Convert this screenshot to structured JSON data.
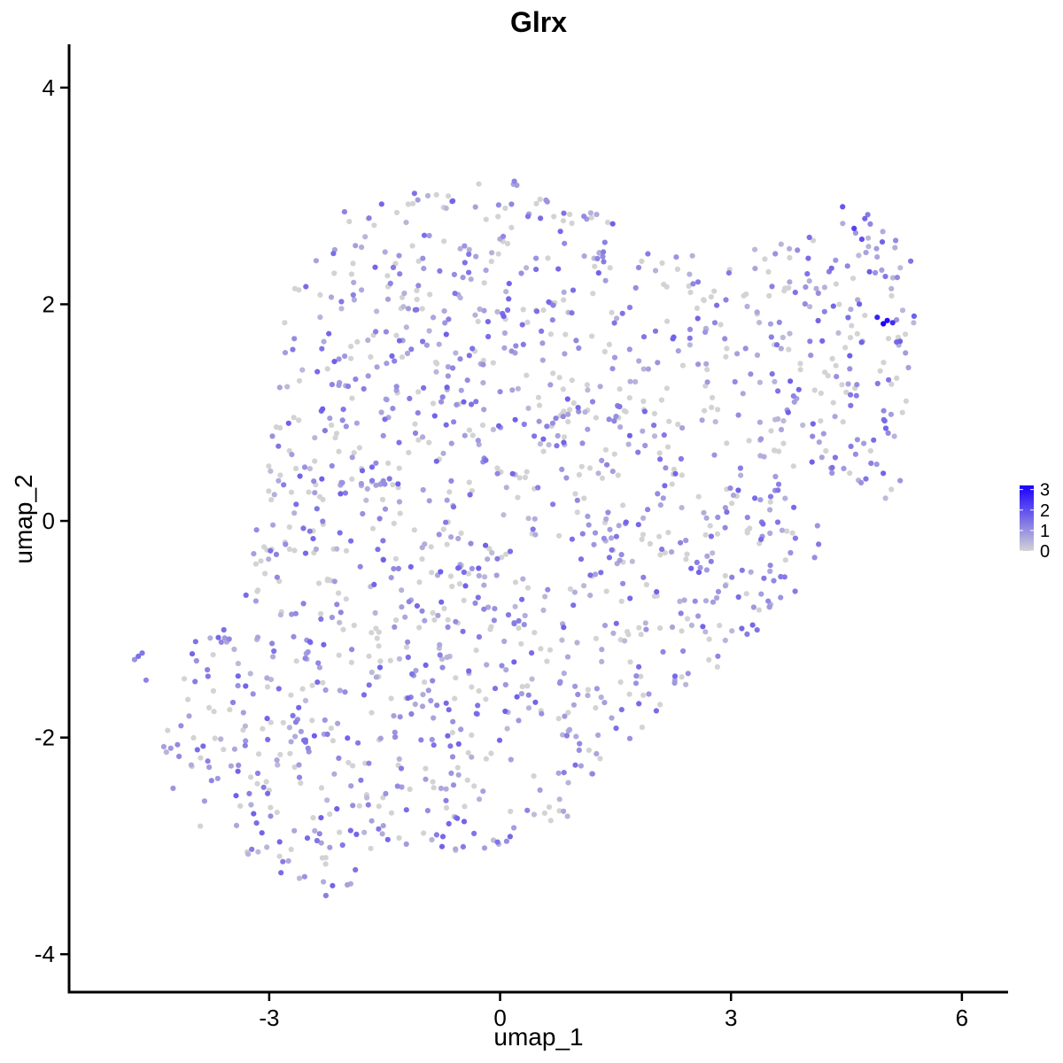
{
  "chart_data": {
    "type": "scatter",
    "title": "Glrx",
    "xlabel": "umap_1",
    "ylabel": "umap_2",
    "xlim": [
      -5.6,
      6.6
    ],
    "ylim": [
      -4.35,
      4.4
    ],
    "x_ticks": [
      -3,
      0,
      3,
      6
    ],
    "y_ticks": [
      -4,
      -2,
      0,
      2,
      4
    ],
    "x_tick_labels": [
      "-3",
      "0",
      "3",
      "6"
    ],
    "y_tick_labels": [
      "-4",
      "-2",
      "0",
      "2",
      "4"
    ],
    "grid": false,
    "legend": {
      "placement": "right",
      "type": "colorbar",
      "breaks": [
        "3",
        "2",
        "1",
        "0"
      ],
      "range": [
        0,
        3.2
      ],
      "low_color": "#d3d3d3",
      "high_color": "#1a00ff"
    },
    "point_color_low": "#d3d3d3",
    "point_color_high": "#1a00ff",
    "n_points": 1600,
    "cluster_description": "single cluster of cells spanning umap_1 from about -4.7 to 5.4 and umap_2 from about -3.5 to 3.2; expression 0-3.2 with highest values near (5.0, 1.8)",
    "highlight_points": [
      {
        "x": 4.98,
        "y": 1.82,
        "value": 3.2
      },
      {
        "x": 5.03,
        "y": 1.85,
        "value": 3.0
      },
      {
        "x": 4.9,
        "y": 1.88,
        "value": 2.7
      },
      {
        "x": 5.1,
        "y": 1.83,
        "value": 2.5
      },
      {
        "x": 4.6,
        "y": 2.7,
        "value": 2.2
      },
      {
        "x": 4.7,
        "y": 2.6,
        "value": 2.0
      },
      {
        "x": 4.45,
        "y": 2.9,
        "value": 1.9
      },
      {
        "x": 4.8,
        "y": 2.3,
        "value": 1.8
      },
      {
        "x": -4.7,
        "y": -1.25,
        "value": 1.5
      },
      {
        "x": -4.65,
        "y": -1.22,
        "value": 1.4
      },
      {
        "x": -4.6,
        "y": -1.47,
        "value": 1.2
      },
      {
        "x": -4.75,
        "y": -1.28,
        "value": 1.0
      }
    ]
  }
}
